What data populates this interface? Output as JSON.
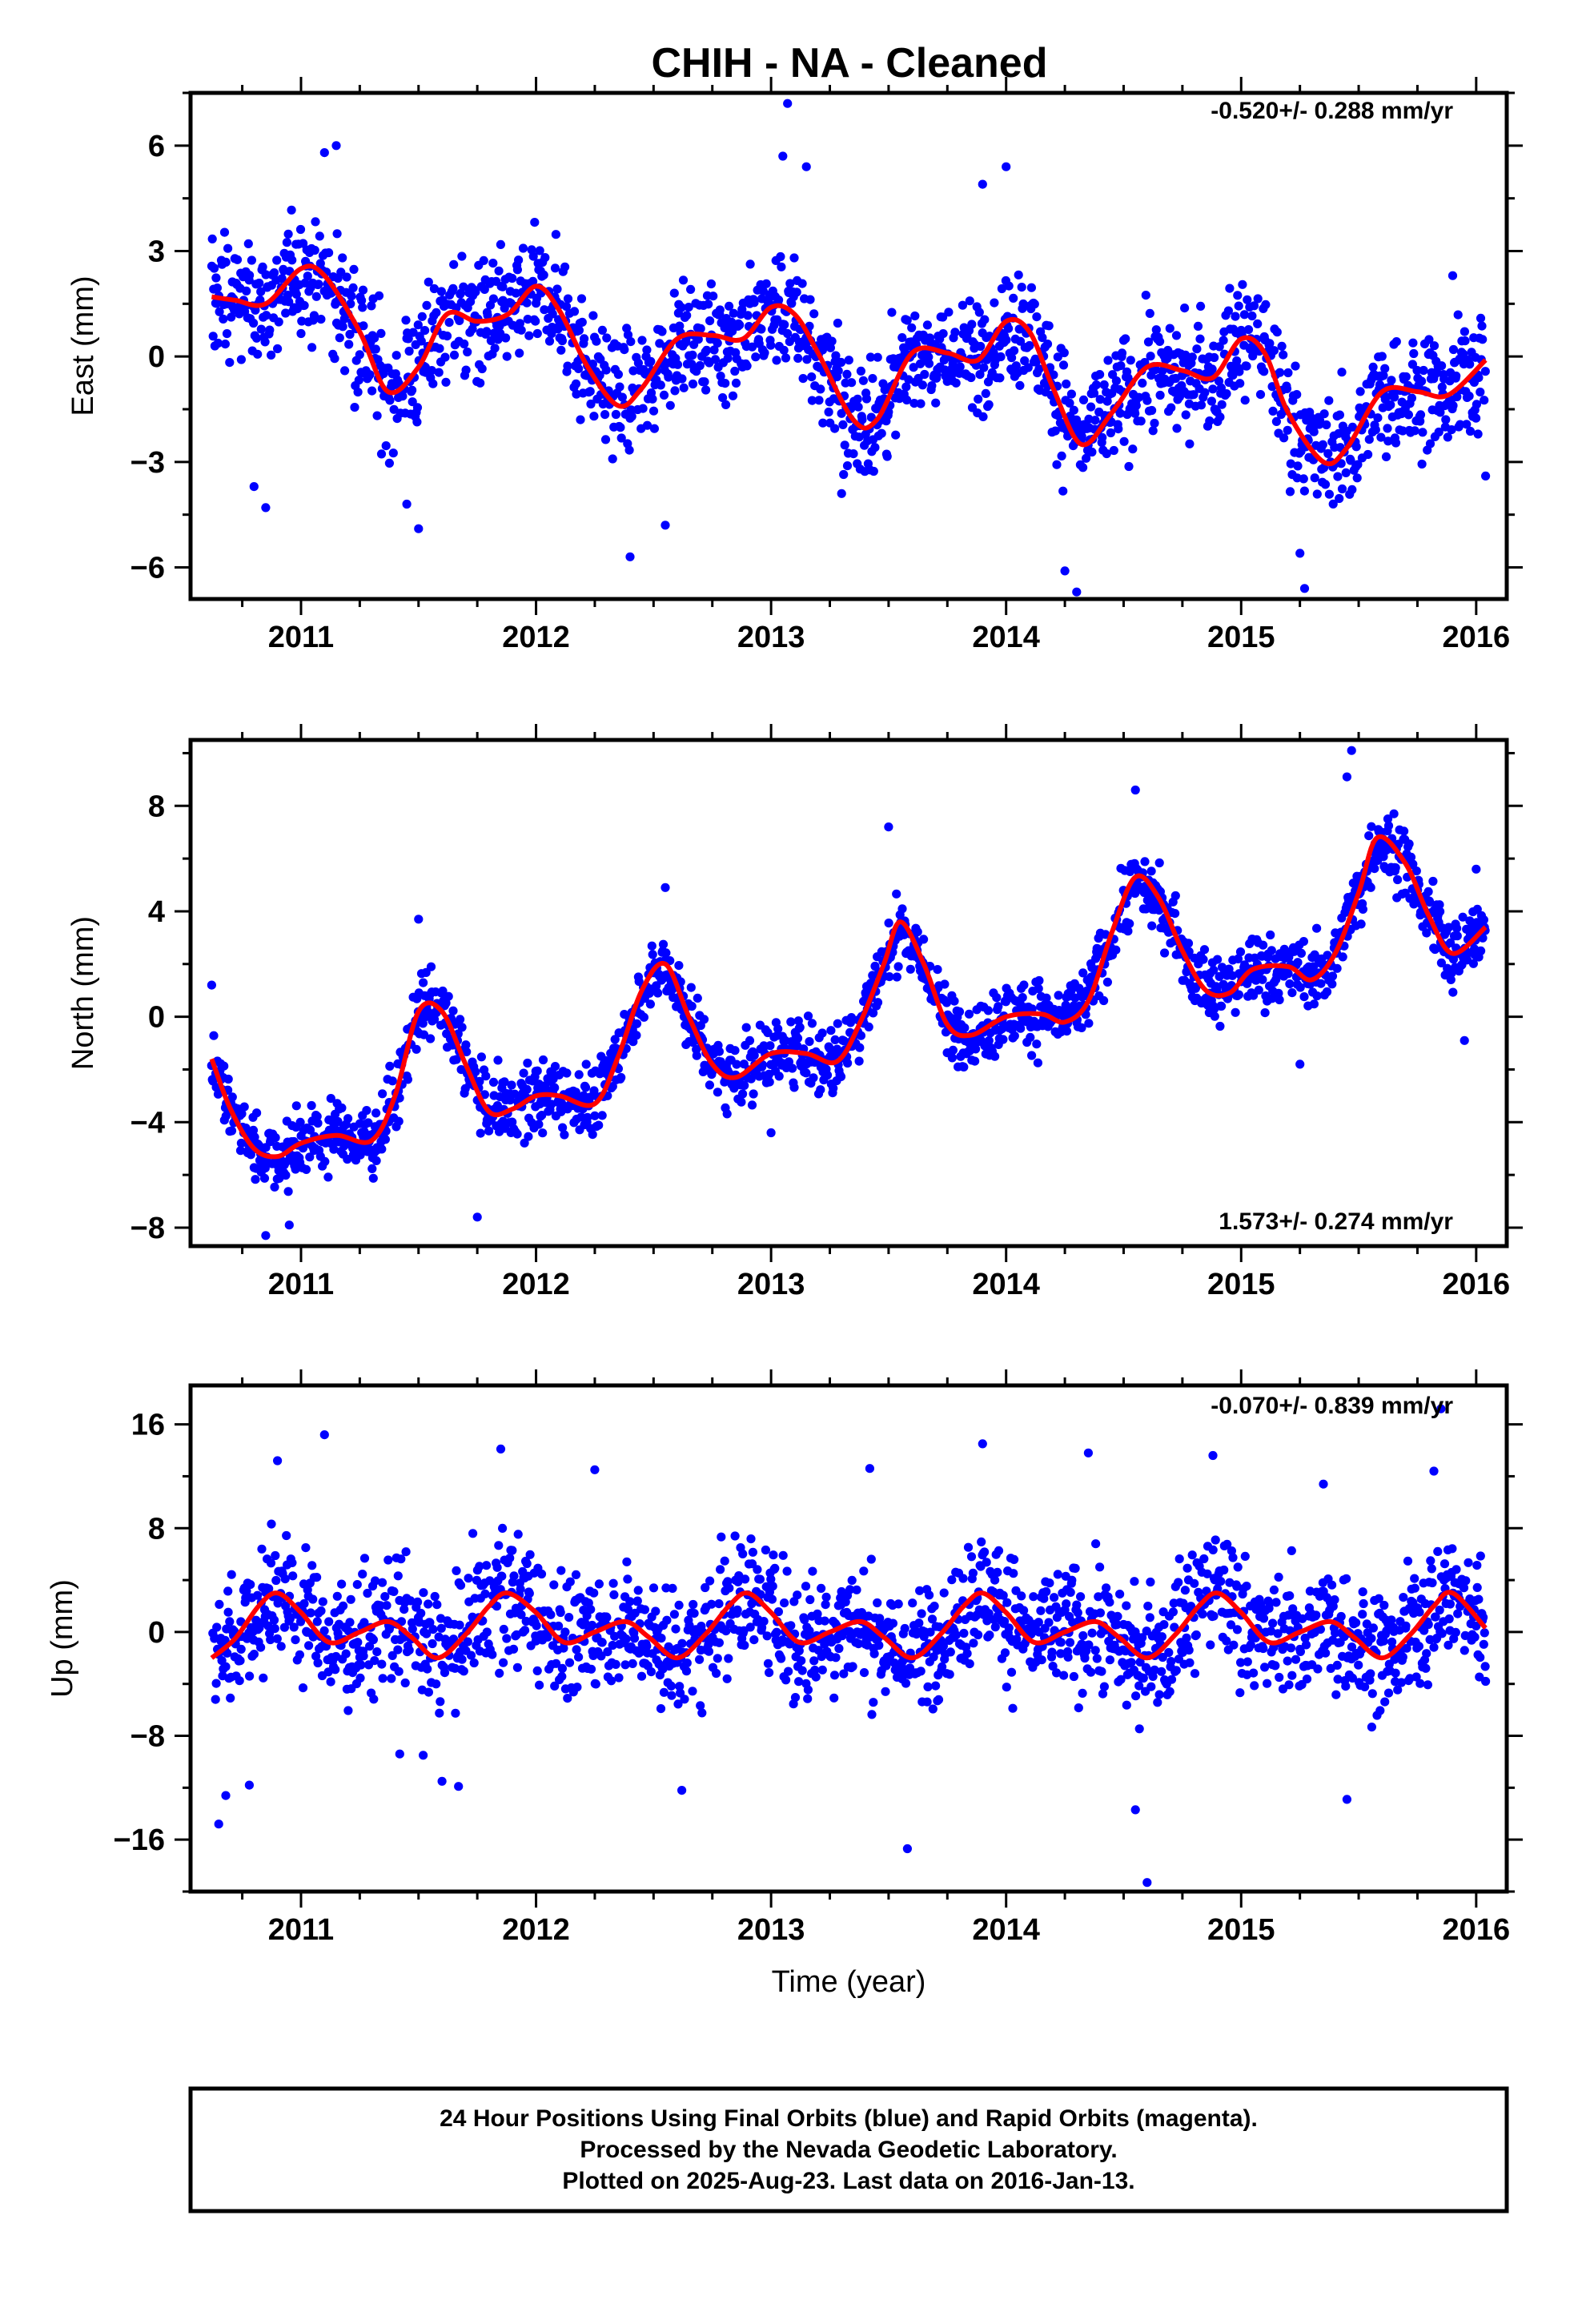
{
  "title": "CHIH  - NA - Cleaned",
  "colors": {
    "final_orbits": "#0000ff",
    "fit": "#ff0000",
    "frame": "#000000"
  },
  "chart_data": [
    {
      "type": "scatter",
      "ylabel": "East (mm)",
      "rate": "-0.520+/- 0.288 mm/yr",
      "xlim": [
        2010.53,
        2016.13
      ],
      "ylim": [
        -6.9,
        7.5
      ],
      "xticks": [
        2011,
        2012,
        2013,
        2014,
        2015,
        2016
      ],
      "yticks": [
        -6,
        -3,
        0,
        3,
        6
      ],
      "grid": false,
      "data": {
        "start": 2010.62,
        "end": 2016.04,
        "slope": -0.52,
        "a1": 1.25,
        "p1": -0.1,
        "a2": 0.95,
        "p2": 0.5,
        "noise": 1.35,
        "span": 1.0,
        "offsets": [
          [
            2010.62,
            1.3
          ],
          [
            2011.0,
            1.0
          ],
          [
            2011.5,
            -0.2
          ],
          [
            2012.0,
            0.8
          ],
          [
            2012.5,
            -0.5
          ],
          [
            2013.0,
            1.4
          ],
          [
            2013.5,
            -0.6
          ],
          [
            2014.0,
            0.5
          ],
          [
            2014.5,
            -1.2
          ],
          [
            2015.0,
            -0.1
          ],
          [
            2015.4,
            -1.8
          ],
          [
            2016.04,
            -0.8
          ]
        ]
      },
      "fit_line": {
        "x": [
          2010.62,
          2010.72,
          2010.85,
          2011.0,
          2011.1,
          2011.25,
          2011.37,
          2011.5,
          2011.62,
          2011.75,
          2011.88,
          2012.0,
          2012.1,
          2012.22,
          2012.35,
          2012.45,
          2012.6,
          2012.75,
          2012.88,
          2013.0,
          2013.1,
          2013.2,
          2013.35,
          2013.45,
          2013.6,
          2013.75,
          2013.88,
          2014.0,
          2014.1,
          2014.2,
          2014.32,
          2014.45,
          2014.6,
          2014.75,
          2014.88,
          2015.0,
          2015.1,
          2015.2,
          2015.35,
          2015.45,
          2015.6,
          2015.75,
          2015.88,
          2016.04
        ],
        "y": [
          1.7,
          1.6,
          1.5,
          2.5,
          2.3,
          0.7,
          -1.0,
          -0.3,
          1.2,
          1.0,
          1.2,
          2.0,
          1.3,
          -0.3,
          -1.4,
          -0.9,
          0.5,
          0.6,
          0.5,
          1.4,
          1.2,
          0.1,
          -1.8,
          -1.8,
          0.1,
          0.1,
          -0.1,
          1.0,
          0.7,
          -0.9,
          -2.5,
          -1.6,
          -0.3,
          -0.4,
          -0.6,
          0.5,
          0.1,
          -1.6,
          -3.0,
          -2.6,
          -1.0,
          -1.0,
          -1.1,
          -0.1
        ]
      },
      "highlights": [
        [
          2010.85,
          -4.3
        ],
        [
          2010.8,
          -3.7
        ],
        [
          2011.1,
          5.8
        ],
        [
          2011.15,
          6.0
        ],
        [
          2011.5,
          -4.9
        ],
        [
          2011.45,
          -4.2
        ],
        [
          2012.4,
          -5.7
        ],
        [
          2012.55,
          -4.8
        ],
        [
          2013.07,
          7.2
        ],
        [
          2013.05,
          5.7
        ],
        [
          2013.15,
          5.4
        ],
        [
          2013.3,
          -3.9
        ],
        [
          2013.9,
          4.9
        ],
        [
          2014.0,
          5.4
        ],
        [
          2014.3,
          -6.7
        ],
        [
          2014.25,
          -6.1
        ],
        [
          2015.27,
          -6.6
        ],
        [
          2015.25,
          -5.6
        ],
        [
          2016.04,
          -3.4
        ],
        [
          2015.9,
          2.3
        ]
      ]
    },
    {
      "type": "scatter",
      "ylabel": "North (mm)",
      "rate": "1.573+/- 0.274 mm/yr",
      "xlim": [
        2010.53,
        2016.13
      ],
      "ylim": [
        -8.7,
        10.5
      ],
      "xticks": [
        2011,
        2012,
        2013,
        2014,
        2015,
        2016
      ],
      "yticks": [
        -8,
        -4,
        0,
        4,
        8
      ],
      "grid": false,
      "data": {
        "start": 2010.62,
        "end": 2016.04,
        "slope": 1.573,
        "a1": 1.6,
        "p1": 1.9,
        "a2": 0.7,
        "p2": 0.2,
        "noise": 1.05,
        "span": 1.0,
        "offsets": [
          [
            2010.62,
            -1.5
          ],
          [
            2016.04,
            0.0
          ]
        ]
      },
      "fit_line": {
        "x": [
          2010.62,
          2010.7,
          2010.8,
          2010.9,
          2011.0,
          2011.15,
          2011.3,
          2011.4,
          2011.5,
          2011.6,
          2011.7,
          2011.8,
          2011.9,
          2012.0,
          2012.1,
          2012.25,
          2012.35,
          2012.45,
          2012.55,
          2012.65,
          2012.75,
          2012.85,
          2013.0,
          2013.15,
          2013.28,
          2013.38,
          2013.48,
          2013.55,
          2013.65,
          2013.75,
          2013.85,
          2014.0,
          2014.15,
          2014.25,
          2014.35,
          2014.45,
          2014.55,
          2014.65,
          2014.75,
          2014.85,
          2014.95,
          2015.05,
          2015.2,
          2015.3,
          2015.4,
          2015.5,
          2015.58,
          2015.7,
          2015.8,
          2015.9,
          2016.04
        ],
        "y": [
          -1.6,
          -3.5,
          -5.0,
          -5.3,
          -4.8,
          -4.5,
          -4.7,
          -3.0,
          0.2,
          0.2,
          -1.8,
          -3.6,
          -3.5,
          -3.0,
          -3.0,
          -3.3,
          -1.5,
          1.0,
          2.0,
          0.0,
          -1.8,
          -2.3,
          -1.4,
          -1.4,
          -1.7,
          -0.2,
          2.0,
          3.6,
          2.0,
          -0.3,
          -0.7,
          0.0,
          0.1,
          -0.2,
          0.6,
          3.2,
          5.3,
          4.5,
          2.5,
          1.0,
          0.9,
          1.8,
          1.9,
          1.4,
          2.4,
          4.7,
          6.8,
          5.8,
          3.8,
          2.4,
          3.4
        ]
      },
      "highlights": [
        [
          2010.62,
          1.2
        ],
        [
          2010.85,
          -8.3
        ],
        [
          2010.95,
          -7.9
        ],
        [
          2011.5,
          3.7
        ],
        [
          2011.75,
          -7.6
        ],
        [
          2012.55,
          4.9
        ],
        [
          2013.5,
          7.2
        ],
        [
          2014.55,
          8.6
        ],
        [
          2015.47,
          10.1
        ],
        [
          2015.45,
          9.1
        ],
        [
          2015.65,
          7.7
        ],
        [
          2015.25,
          -1.8
        ],
        [
          2015.95,
          -0.9
        ],
        [
          2016.0,
          5.6
        ],
        [
          2013.0,
          -4.4
        ]
      ]
    },
    {
      "type": "scatter",
      "ylabel": "Up (mm)",
      "xlabel": "Time (year)",
      "rate": "-0.070+/- 0.839 mm/yr",
      "xlim": [
        2010.53,
        2016.13
      ],
      "ylim": [
        -20.0,
        19.0
      ],
      "xticks": [
        2011,
        2012,
        2013,
        2014,
        2015,
        2016
      ],
      "yticks": [
        -16,
        -8,
        0,
        8,
        16
      ],
      "grid": false,
      "data": {
        "start": 2010.62,
        "end": 2016.04,
        "slope": -0.07,
        "a1": 2.3,
        "p1": -2.2,
        "a2": 0.8,
        "p2": 1.0,
        "noise": 3.9,
        "span": 1.25,
        "offsets": [
          [
            2010.62,
            0.0
          ],
          [
            2016.04,
            0.0
          ]
        ]
      },
      "fit_line": {
        "x": [
          2010.62,
          2010.72,
          2010.82,
          2010.9,
          2011.0,
          2011.12,
          2011.25,
          2011.37,
          2011.47,
          2011.58,
          2011.7,
          2011.8,
          2011.88,
          2012.0,
          2012.12,
          2012.25,
          2012.38,
          2012.48,
          2012.6,
          2012.72,
          2012.82,
          2012.9,
          2013.0,
          2013.12,
          2013.25,
          2013.38,
          2013.48,
          2013.6,
          2013.72,
          2013.82,
          2013.9,
          2014.0,
          2014.12,
          2014.25,
          2014.38,
          2014.48,
          2014.6,
          2014.72,
          2014.82,
          2014.9,
          2015.0,
          2015.12,
          2015.25,
          2015.38,
          2015.48,
          2015.6,
          2015.72,
          2015.82,
          2015.9,
          2016.04
        ],
        "y": [
          -2.0,
          -0.5,
          2.0,
          3.0,
          1.5,
          -0.8,
          0.0,
          0.8,
          -0.4,
          -2.0,
          -0.2,
          2.0,
          3.0,
          1.5,
          -0.8,
          0.0,
          0.8,
          -0.4,
          -2.0,
          -0.2,
          2.0,
          3.0,
          1.5,
          -0.8,
          0.0,
          0.8,
          -0.4,
          -2.0,
          -0.2,
          2.0,
          3.0,
          1.5,
          -0.8,
          0.0,
          0.8,
          -0.4,
          -2.0,
          -0.2,
          2.0,
          3.0,
          1.5,
          -0.8,
          0.0,
          0.8,
          -0.4,
          -2.0,
          -0.2,
          2.0,
          3.0,
          0.3
        ]
      },
      "highlights": [
        [
          2010.65,
          -14.8
        ],
        [
          2010.68,
          -12.6
        ],
        [
          2010.78,
          -11.8
        ],
        [
          2010.9,
          13.2
        ],
        [
          2011.1,
          15.2
        ],
        [
          2011.42,
          -9.4
        ],
        [
          2011.52,
          -9.5
        ],
        [
          2011.6,
          -11.5
        ],
        [
          2011.67,
          -11.9
        ],
        [
          2011.85,
          14.1
        ],
        [
          2012.25,
          12.5
        ],
        [
          2012.62,
          -12.2
        ],
        [
          2013.42,
          12.6
        ],
        [
          2013.58,
          -16.7
        ],
        [
          2013.9,
          14.5
        ],
        [
          2014.35,
          13.8
        ],
        [
          2014.6,
          -19.3
        ],
        [
          2014.55,
          -13.7
        ],
        [
          2014.88,
          13.6
        ],
        [
          2015.45,
          -12.9
        ],
        [
          2015.35,
          11.4
        ],
        [
          2015.85,
          17.2
        ],
        [
          2015.82,
          12.4
        ],
        [
          2016.04,
          -3.8
        ]
      ]
    }
  ],
  "footer": {
    "line1": "24 Hour Positions Using Final Orbits (blue) and Rapid Orbits (magenta).",
    "line2": "Processed by the Nevada Geodetic Laboratory.",
    "line3": "Plotted on 2025-Aug-23. Last data on 2016-Jan-13."
  }
}
